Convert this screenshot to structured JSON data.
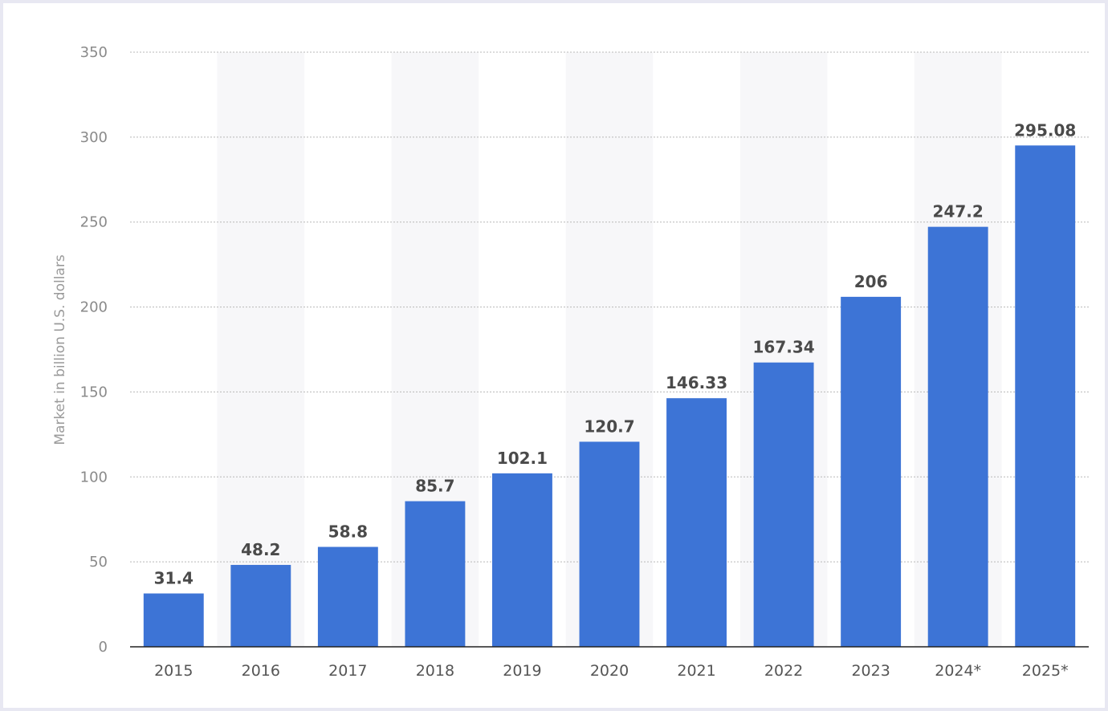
{
  "chart_data": {
    "type": "bar",
    "ylabel": "Market in billion U.S. dollars",
    "categories": [
      "2015",
      "2016",
      "2017",
      "2018",
      "2019",
      "2020",
      "2021",
      "2022",
      "2023",
      "2024*",
      "2025*"
    ],
    "values": [
      31.4,
      48.2,
      58.8,
      85.7,
      102.1,
      120.7,
      146.33,
      167.34,
      206,
      247.2,
      295.08
    ],
    "value_labels": [
      "31.4",
      "48.2",
      "58.8",
      "85.7",
      "102.1",
      "120.7",
      "146.33",
      "167.34",
      "206",
      "247.2",
      "295.08"
    ],
    "ylim": [
      0,
      350
    ],
    "yticks": [
      0,
      50,
      100,
      150,
      200,
      250,
      300,
      350
    ],
    "grid": true,
    "bar_color": "#3d74d6",
    "alt_band_color": "#f7f7f9"
  }
}
